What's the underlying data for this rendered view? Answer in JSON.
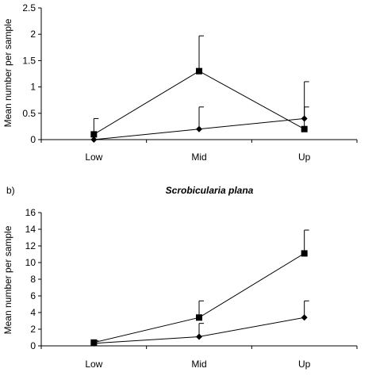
{
  "chart_data": [
    {
      "type": "line",
      "panel_label": "",
      "title": "",
      "xlabel": "",
      "ylabel": "Mean number per sample",
      "categories": [
        "Low",
        "Mid",
        "Up"
      ],
      "ylim": [
        0,
        2.5
      ],
      "yticks": [
        0,
        0.5,
        1,
        1.5,
        2,
        2.5
      ],
      "ytick_labels": [
        "0",
        "0.5",
        "1",
        "1.5",
        "2",
        "2.5"
      ],
      "grid": false,
      "series": [
        {
          "marker": "square",
          "values": [
            0.1,
            1.3,
            0.2
          ],
          "error_upper": [
            0.4,
            1.97,
            0.62
          ]
        },
        {
          "marker": "diamond",
          "values": [
            0.0,
            0.2,
            0.4
          ],
          "error_upper": [
            0.0,
            0.62,
            1.1
          ]
        }
      ]
    },
    {
      "type": "line",
      "panel_label": "b)",
      "title": "Scrobicularia plana",
      "xlabel": "",
      "ylabel": "Mean number per sample",
      "categories": [
        "Low",
        "Mid",
        "Up"
      ],
      "ylim": [
        0,
        16
      ],
      "yticks": [
        0,
        2,
        4,
        6,
        8,
        10,
        12,
        14,
        16
      ],
      "ytick_labels": [
        "0",
        "2",
        "4",
        "6",
        "8",
        "10",
        "12",
        "14",
        "16"
      ],
      "grid": false,
      "series": [
        {
          "marker": "square",
          "values": [
            0.4,
            3.4,
            11.1
          ],
          "error_upper": [
            0.6,
            5.4,
            13.9
          ]
        },
        {
          "marker": "diamond",
          "values": [
            0.3,
            1.1,
            3.4
          ],
          "error_upper": [
            0.3,
            2.7,
            5.4
          ]
        }
      ]
    }
  ]
}
